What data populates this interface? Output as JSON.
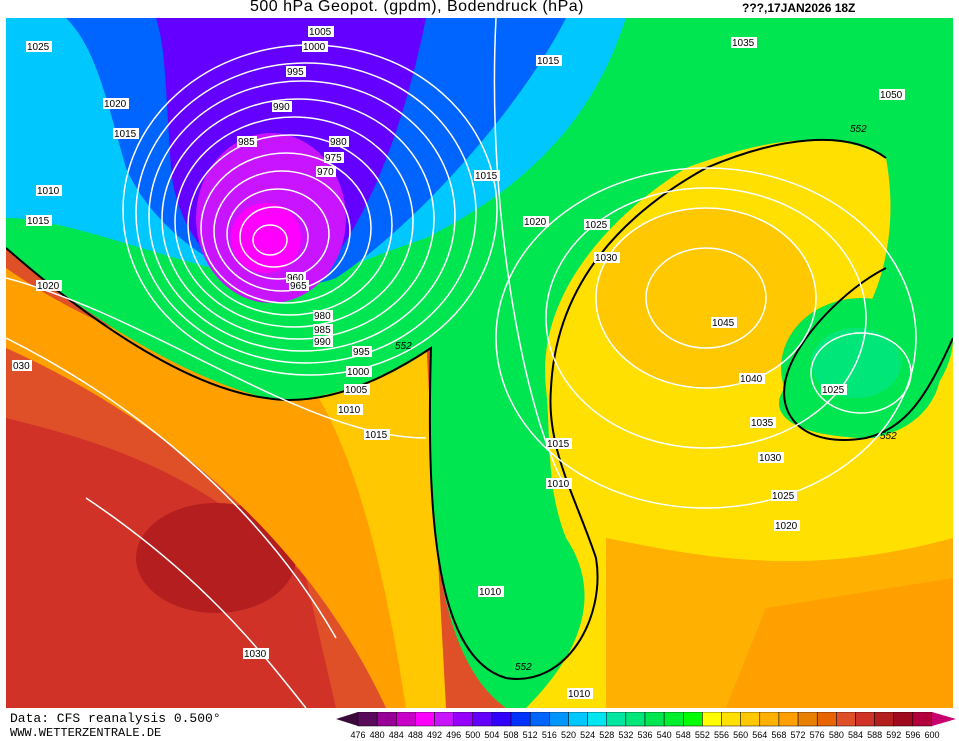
{
  "header": {
    "title": "500 hPa Geopot. (gpdm), Bodendruck (hPa)",
    "date": "???,17JAN2026 18Z"
  },
  "footer": {
    "source": "Data: CFS reanalysis 0.500°",
    "website": "WWW.WETTERZENTRALE.DE"
  },
  "map": {
    "geopotential_contour_label": "552",
    "pressure_labels": [
      "1005",
      "1000",
      "995",
      "990",
      "985",
      "980",
      "975",
      "970",
      "960",
      "965",
      "980",
      "985",
      "990",
      "995",
      "1000",
      "1005",
      "1010",
      "1015",
      "1025",
      "1020",
      "1015",
      "1010",
      "1015",
      "1020",
      "030",
      "1015",
      "1015",
      "1020",
      "1025",
      "1030",
      "1035",
      "1050",
      "1045",
      "1040",
      "1035",
      "1030",
      "1025",
      "1020",
      "1025",
      "1015",
      "1010",
      "1010",
      "1030",
      "1010",
      "552",
      "552",
      "552",
      "552"
    ]
  },
  "legend": {
    "labels": [
      "476",
      "480",
      "484",
      "488",
      "492",
      "496",
      "500",
      "504",
      "508",
      "512",
      "516",
      "520",
      "524",
      "528",
      "532",
      "536",
      "540",
      "548",
      "552",
      "556",
      "560",
      "564",
      "568",
      "572",
      "576",
      "580",
      "584",
      "588",
      "592",
      "596",
      "600"
    ],
    "colors": [
      "#5a0a5a",
      "#960096",
      "#c800c8",
      "#ff00ff",
      "#c814ff",
      "#9600ff",
      "#6400ff",
      "#3200ff",
      "#0032ff",
      "#0064ff",
      "#0096ff",
      "#00c8ff",
      "#00e6f0",
      "#00e6a0",
      "#00e678",
      "#00e650",
      "#00f030",
      "#00ff00",
      "#ffff00",
      "#ffe000",
      "#ffc800",
      "#ffb000",
      "#ffa000",
      "#e88000",
      "#e86400",
      "#e05028",
      "#d03228",
      "#b41e1e",
      "#a00a1e",
      "#b4003c"
    ],
    "low_arrow_color": "#3a0a3a",
    "high_arrow_color": "#c8006e"
  }
}
